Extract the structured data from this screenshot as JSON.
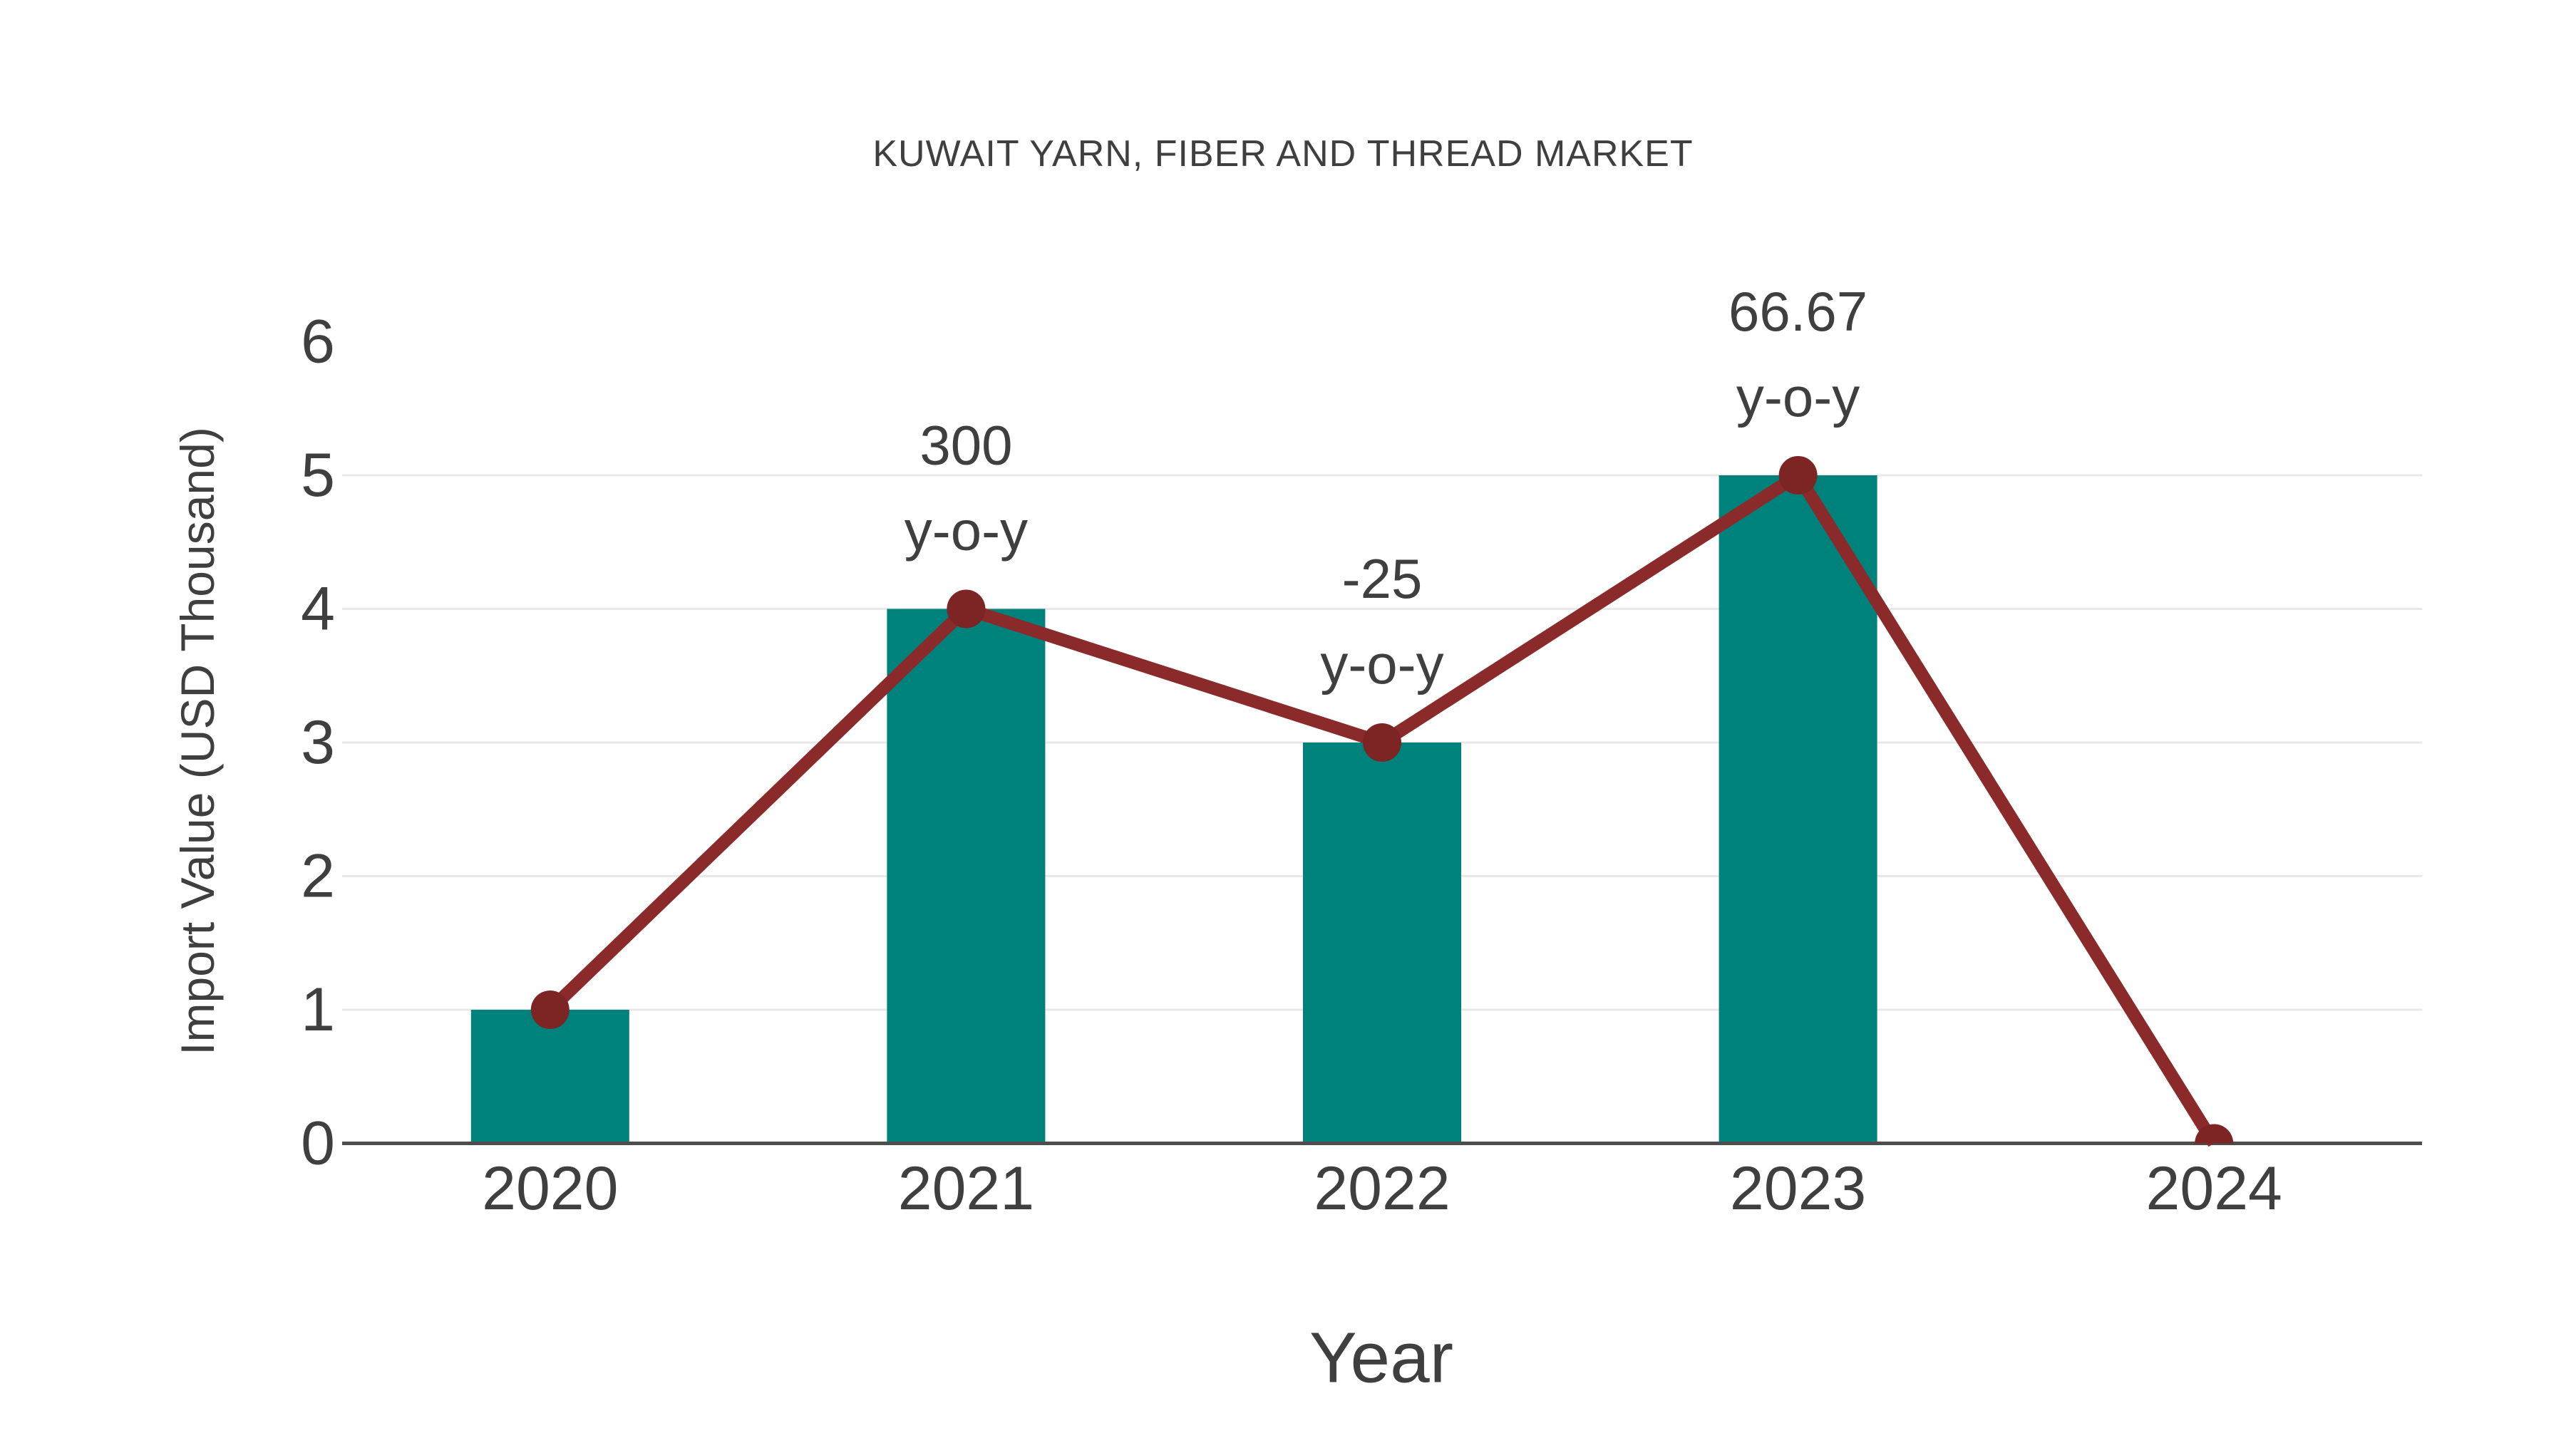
{
  "chart_data": {
    "type": "bar+line",
    "title": "KUWAIT YARN, FIBER AND THREAD MARKET",
    "xlabel": "Year",
    "ylabel": "Import Value (USD Thousand)",
    "categories": [
      "2020",
      "2021",
      "2022",
      "2023",
      "2024"
    ],
    "series": [
      {
        "name": "Import Value (bars)",
        "type": "bar",
        "values": [
          1,
          4,
          3,
          5,
          0
        ]
      },
      {
        "name": "Import Value trend (line)",
        "type": "line",
        "values": [
          1,
          4,
          3,
          5,
          0
        ]
      }
    ],
    "annotations": [
      {
        "category": "2021",
        "value_label": "300",
        "suffix": "y-o-y"
      },
      {
        "category": "2022",
        "value_label": "-25",
        "suffix": "y-o-y"
      },
      {
        "category": "2023",
        "value_label": "66.67",
        "suffix": "y-o-y"
      }
    ],
    "ylim": [
      0,
      6
    ],
    "yticks": [
      0,
      1,
      2,
      3,
      4,
      5,
      6
    ],
    "grid": true,
    "legend": false
  },
  "colors": {
    "background": "#FFFFFF",
    "bar": "#00827C",
    "line": "#8B2A2A",
    "marker": "#7D2424",
    "text": "#3F3F3F",
    "grid": "#E8E8E8",
    "axis": "#4D4D4D"
  }
}
